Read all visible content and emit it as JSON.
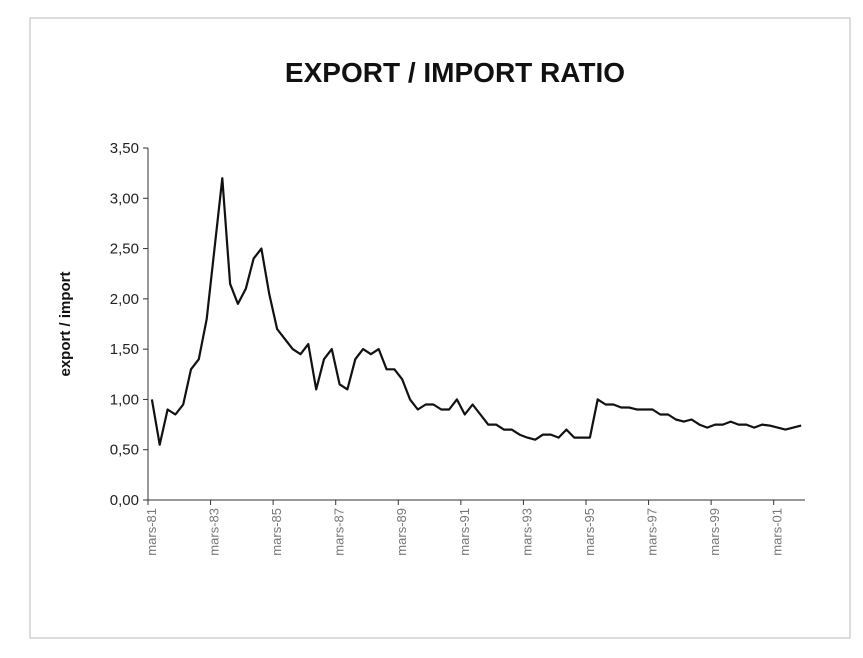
{
  "chart_data": {
    "type": "line",
    "title": "EXPORT / IMPORT RATIO",
    "y_label": "export / import",
    "categories": [
      "mars-81",
      null,
      null,
      null,
      null,
      null,
      null,
      null,
      "mars-83",
      null,
      null,
      null,
      null,
      null,
      null,
      null,
      "mars-85",
      null,
      null,
      null,
      null,
      null,
      null,
      null,
      "mars-87",
      null,
      null,
      null,
      null,
      null,
      null,
      null,
      "mars-89",
      null,
      null,
      null,
      null,
      null,
      null,
      null,
      "mars-91",
      null,
      null,
      null,
      null,
      null,
      null,
      null,
      "mars-93",
      null,
      null,
      null,
      null,
      null,
      null,
      null,
      "mars-95",
      null,
      null,
      null,
      null,
      null,
      null,
      null,
      "mars-97",
      null,
      null,
      null,
      null,
      null,
      null,
      null,
      "mars-99",
      null,
      null,
      null,
      null,
      null,
      null,
      null,
      "mars-01",
      null,
      null,
      null
    ],
    "values": [
      1.0,
      0.55,
      0.9,
      0.85,
      0.95,
      1.3,
      1.4,
      1.8,
      2.5,
      3.2,
      2.15,
      1.95,
      2.1,
      2.4,
      2.5,
      2.05,
      1.7,
      1.6,
      1.5,
      1.45,
      1.55,
      1.1,
      1.4,
      1.5,
      1.15,
      1.1,
      1.4,
      1.5,
      1.45,
      1.5,
      1.3,
      1.3,
      1.2,
      1.0,
      0.9,
      0.95,
      0.95,
      0.9,
      0.9,
      1.0,
      0.85,
      0.95,
      0.85,
      0.75,
      0.75,
      0.7,
      0.7,
      0.65,
      0.62,
      0.6,
      0.65,
      0.65,
      0.62,
      0.7,
      0.62,
      0.62,
      0.62,
      1.0,
      0.95,
      0.95,
      0.92,
      0.92,
      0.9,
      0.9,
      0.9,
      0.85,
      0.85,
      0.8,
      0.78,
      0.8,
      0.75,
      0.72,
      0.75,
      0.75,
      0.78,
      0.75,
      0.75,
      0.72,
      0.75,
      0.74,
      0.72,
      0.7,
      0.72,
      0.74
    ],
    "color": "#111111",
    "ylim": [
      0,
      3.5
    ],
    "yticks": [
      {
        "value": 0,
        "label": "0,00"
      },
      {
        "value": 0.5,
        "label": "0,50"
      },
      {
        "value": 1,
        "label": "1,00"
      },
      {
        "value": 1.5,
        "label": "1,50"
      },
      {
        "value": 2,
        "label": "2,00"
      },
      {
        "value": 2.5,
        "label": "2,50"
      },
      {
        "value": 3,
        "label": "3,00"
      },
      {
        "value": 3.5,
        "label": "3,50"
      }
    ],
    "grid": false
  }
}
